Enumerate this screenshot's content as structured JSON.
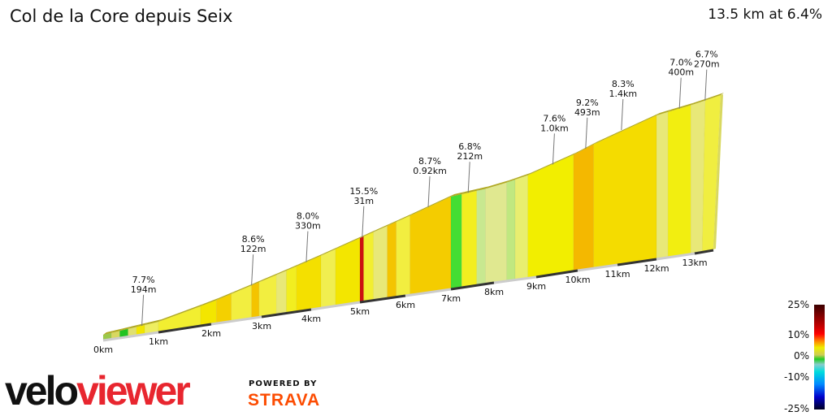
{
  "title": "Col de la Core depuis Seix",
  "summary": "13.5 km at 6.4%",
  "chart_data": {
    "type": "area",
    "xlabel": "",
    "ylabel": "",
    "x_ticks": [
      "0km",
      "1km",
      "2km",
      "3km",
      "4km",
      "5km",
      "6km",
      "7km",
      "8km",
      "9km",
      "10km",
      "11km",
      "12km",
      "13km"
    ],
    "xlim": [
      0,
      13.5
    ],
    "segments": [
      {
        "to": 0.15,
        "color": "#9bc84a"
      },
      {
        "to": 0.3,
        "color": "#d8d860"
      },
      {
        "to": 0.45,
        "color": "#22c322"
      },
      {
        "to": 0.6,
        "color": "#e0e070"
      },
      {
        "to": 0.75,
        "color": "#f2e600"
      },
      {
        "to": 1.0,
        "color": "#eeee60"
      },
      {
        "to": 1.8,
        "color": "#f2ee30"
      },
      {
        "to": 2.1,
        "color": "#f3e600"
      },
      {
        "to": 2.4,
        "color": "#f4d000"
      },
      {
        "to": 2.8,
        "color": "#f2ee40"
      },
      {
        "to": 2.95,
        "color": "#f4c400"
      },
      {
        "to": 3.3,
        "color": "#f2ee40"
      },
      {
        "to": 3.5,
        "color": "#e8e878"
      },
      {
        "to": 3.7,
        "color": "#f2ee20"
      },
      {
        "to": 4.2,
        "color": "#f4e000"
      },
      {
        "to": 4.5,
        "color": "#f0ee50"
      },
      {
        "to": 5.0,
        "color": "#f3e600"
      },
      {
        "to": 5.08,
        "color": "#cc1010"
      },
      {
        "to": 5.3,
        "color": "#f2ee30"
      },
      {
        "to": 5.6,
        "color": "#e8e878"
      },
      {
        "to": 5.8,
        "color": "#f4c400"
      },
      {
        "to": 6.1,
        "color": "#f2ee40"
      },
      {
        "to": 7.0,
        "color": "#f4cc00"
      },
      {
        "to": 7.25,
        "color": "#44dd33"
      },
      {
        "to": 7.6,
        "color": "#f2ee20"
      },
      {
        "to": 7.8,
        "color": "#c8e890"
      },
      {
        "to": 8.3,
        "color": "#e0e890"
      },
      {
        "to": 8.5,
        "color": "#c0e880"
      },
      {
        "to": 8.8,
        "color": "#e8ee70"
      },
      {
        "to": 9.9,
        "color": "#f2ee00"
      },
      {
        "to": 10.4,
        "color": "#f4b800"
      },
      {
        "to": 12.0,
        "color": "#f4dc00"
      },
      {
        "to": 12.3,
        "color": "#e8e878"
      },
      {
        "to": 12.9,
        "color": "#f2ee10"
      },
      {
        "to": 13.2,
        "color": "#e8e878"
      },
      {
        "to": 13.5,
        "color": "#f0ee40"
      }
    ],
    "annotations": [
      {
        "km": 0.7,
        "gradient": "7.7%",
        "length": "194m"
      },
      {
        "km": 2.8,
        "gradient": "8.6%",
        "length": "122m"
      },
      {
        "km": 3.9,
        "gradient": "8.0%",
        "length": "330m"
      },
      {
        "km": 5.05,
        "gradient": "15.5%",
        "length": "31m"
      },
      {
        "km": 6.5,
        "gradient": "8.7%",
        "length": "0.92km"
      },
      {
        "km": 7.4,
        "gradient": "6.8%",
        "length": "212m"
      },
      {
        "km": 9.4,
        "gradient": "7.6%",
        "length": "1.0km"
      },
      {
        "km": 10.2,
        "gradient": "9.2%",
        "length": "493m"
      },
      {
        "km": 11.1,
        "gradient": "8.3%",
        "length": "1.4km"
      },
      {
        "km": 12.6,
        "gradient": "7.0%",
        "length": "400m"
      },
      {
        "km": 13.2,
        "gradient": "6.7%",
        "length": "270m"
      }
    ],
    "legend": {
      "labels": [
        "25%",
        "10%",
        "0%",
        "-10%",
        "-25%"
      ]
    }
  },
  "branding": {
    "logo_a": "velo",
    "logo_b": "viewer",
    "powered": "POWERED BY",
    "strava": "STRAVA"
  }
}
